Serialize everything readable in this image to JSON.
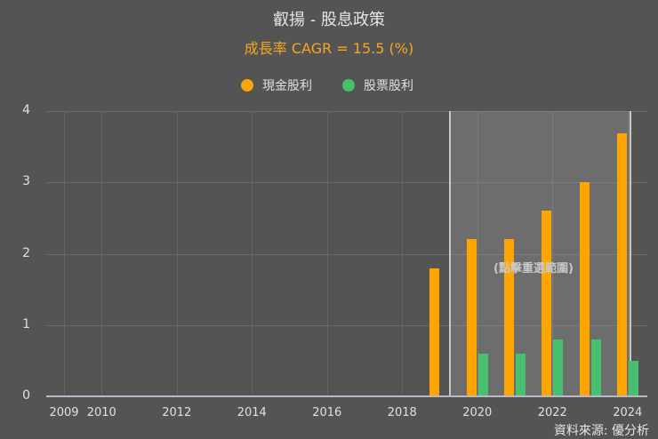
{
  "title": "叡揚 - 股息政策",
  "subtitle": "成長率 CAGR = 15.5 (%)",
  "legend": [
    {
      "label": "現金股利",
      "color": "#ffa500",
      "icon": "circle-dot-icon"
    },
    {
      "label": "股票股利",
      "color": "#48c070",
      "icon": "circle-dot-icon"
    }
  ],
  "selection_hint": "(點擊重選範圍)",
  "source": "資料來源: 優分析",
  "y_ticks": [
    "0",
    "1",
    "2",
    "3",
    "4"
  ],
  "x_ticks": [
    "2009",
    "2010",
    "2012",
    "2014",
    "2016",
    "2018",
    "2020",
    "2022",
    "2024"
  ],
  "chart_data": {
    "type": "bar",
    "title": "叡揚 - 股息政策",
    "subtitle": "成長率 CAGR = 15.5 (%)",
    "xlabel": "",
    "ylabel": "",
    "ylim": [
      0,
      4
    ],
    "grid": true,
    "legend_position": "top",
    "categories": [
      "2009",
      "2010",
      "2011",
      "2012",
      "2013",
      "2014",
      "2015",
      "2016",
      "2017",
      "2018",
      "2019",
      "2020",
      "2021",
      "2022",
      "2023",
      "2024"
    ],
    "series": [
      {
        "name": "現金股利",
        "color": "#ffa500",
        "values": [
          0,
          0,
          0,
          0,
          0,
          0,
          0,
          0,
          0,
          0,
          1.8,
          2.2,
          2.2,
          2.6,
          3.0,
          3.69
        ]
      },
      {
        "name": "股票股利",
        "color": "#48c070",
        "values": [
          0,
          0,
          0,
          0,
          0,
          0,
          0,
          0,
          0,
          0,
          0,
          0.6,
          0.6,
          0.8,
          0.8,
          0.5
        ]
      }
    ],
    "selected_range": [
      "2019",
      "2024"
    ],
    "annotations": [
      "(點擊重選範圍)"
    ],
    "source": "資料來源: 優分析"
  }
}
